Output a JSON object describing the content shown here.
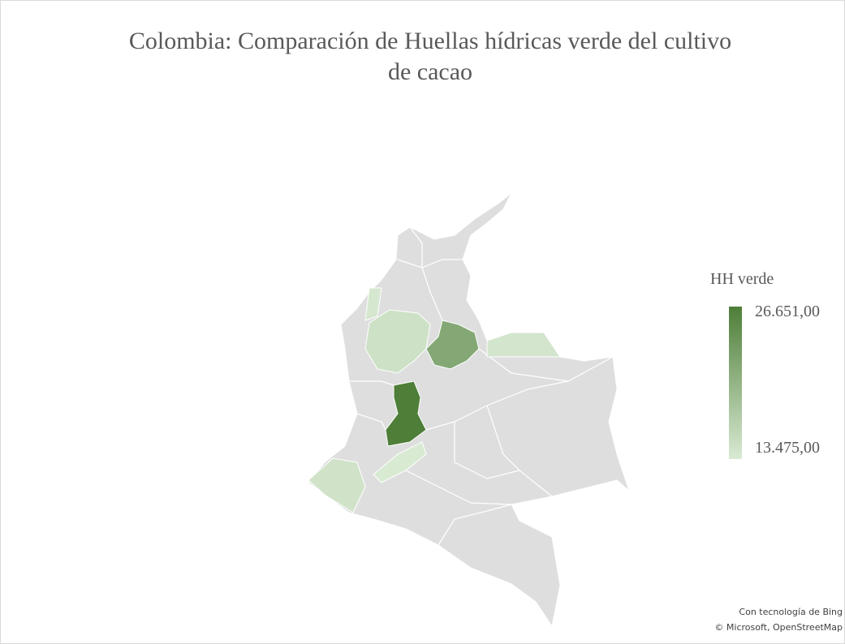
{
  "chart_data": {
    "type": "map",
    "title": "Colombia: Comparación de Huellas hídricas verde del cultivo de cacao",
    "legend_title": "HH verde",
    "legend_ticks": [
      {
        "value": 26651,
        "label": "26.651,00"
      },
      {
        "value": 13475,
        "label": "13.475,00"
      }
    ],
    "color_range": [
      "#d9ead3",
      "#4e7e38"
    ],
    "categories": [
      null,
      null,
      null,
      null,
      null,
      null,
      null
    ],
    "values": [
      26651,
      21500,
      14600,
      14000,
      14300,
      13900,
      13475
    ],
    "attribution": [
      "Con tecnología de Bing",
      "© Microsoft, OpenStreetMap"
    ]
  }
}
